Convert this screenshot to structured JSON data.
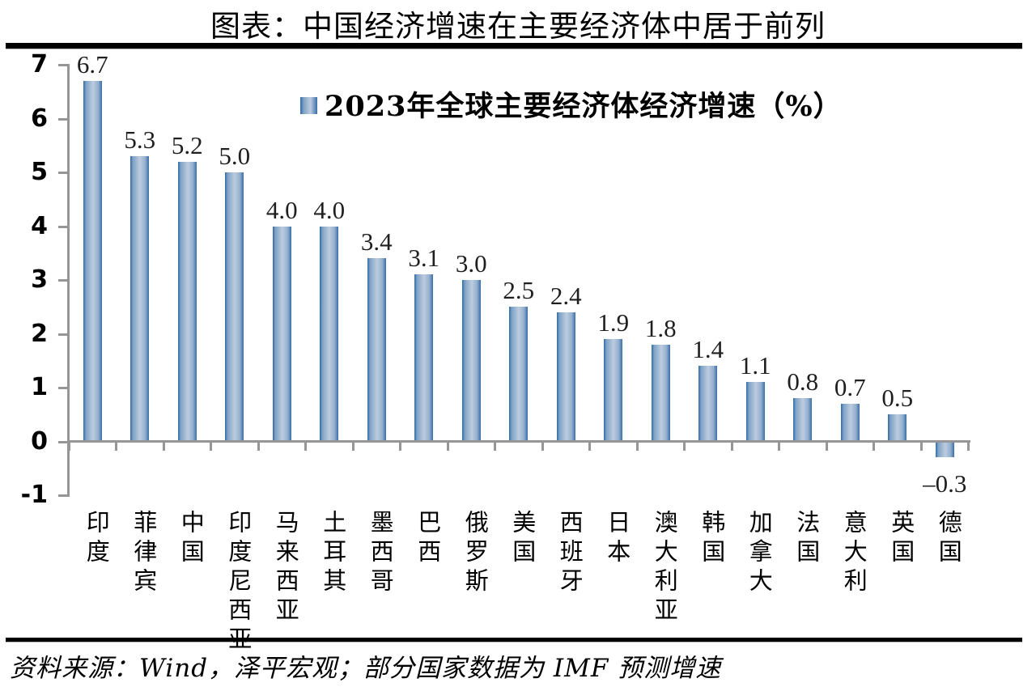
{
  "page": {
    "title": "图表：中国经济增速在主要经济体中居于前列",
    "source_note": "资料来源：Wind，泽平宏观；部分国家数据为 IMF 预测增速"
  },
  "legend": {
    "marker": "blue-gradient-square",
    "label": "2023年全球主要经济体经济增速（%）"
  },
  "colors": {
    "bar_edge": "#2e6aa6",
    "bar_edge2": "#3a6ea8",
    "bar_mid": "#7fa2c6",
    "bar_light": "#bdccdf",
    "axis": "#969696",
    "rule": "#000000",
    "text": "#000000",
    "value_label": "#1f1f1f"
  },
  "y_axis": {
    "ticks": [
      "7",
      "6",
      "5",
      "4",
      "3",
      "2",
      "1",
      "0",
      "-1"
    ],
    "tick_values": [
      7,
      6,
      5,
      4,
      3,
      2,
      1,
      0,
      -1
    ],
    "min": -1,
    "max": 7
  },
  "chart_data": {
    "type": "bar",
    "title": "2023年全球主要经济体经济增速（%）",
    "categories": [
      "印度",
      "菲律宾",
      "中国",
      "印度尼西亚",
      "马来西亚",
      "土耳其",
      "墨西哥",
      "巴西",
      "俄罗斯",
      "美国",
      "西班牙",
      "日本",
      "澳大利亚",
      "韩国",
      "加拿大",
      "法国",
      "意大利",
      "英国",
      "德国"
    ],
    "values": [
      6.7,
      5.3,
      5.2,
      5.0,
      4.0,
      4.0,
      3.4,
      3.1,
      3.0,
      2.5,
      2.4,
      1.9,
      1.8,
      1.4,
      1.1,
      0.8,
      0.7,
      0.5,
      -0.3
    ],
    "value_labels": [
      "6.7",
      "5.3",
      "5.2",
      "5.0",
      "4.0",
      "4.0",
      "3.4",
      "3.1",
      "3.0",
      "2.5",
      "2.4",
      "1.9",
      "1.8",
      "1.4",
      "1.1",
      "0.8",
      "0.7",
      "0.5",
      "–0.3"
    ],
    "xlabel": "",
    "ylabel": "",
    "ylim": [
      -1,
      7
    ],
    "grid": false,
    "legend_position": "top-right-inside"
  }
}
